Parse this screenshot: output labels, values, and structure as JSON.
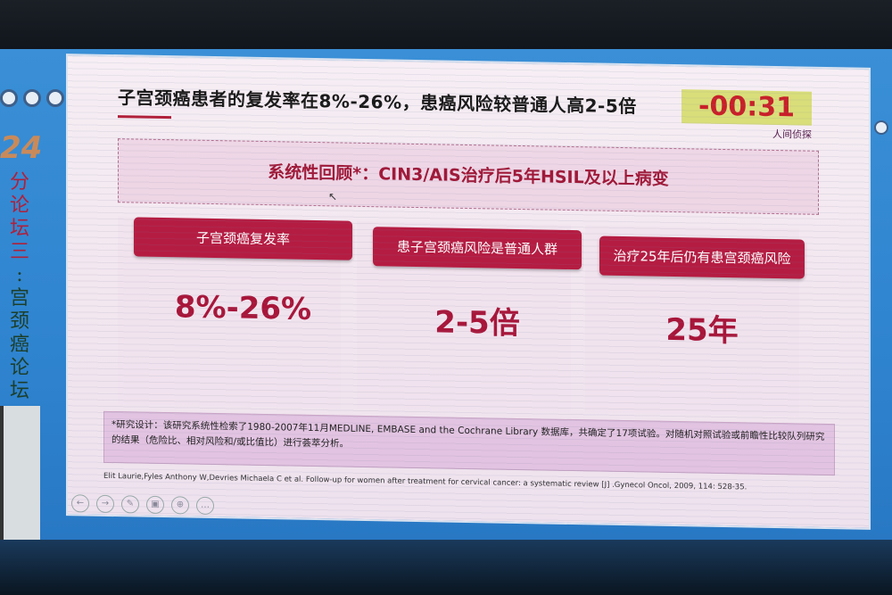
{
  "side_banner": {
    "year": "24",
    "vertical_text": [
      "分",
      "论",
      "坛",
      "三",
      ":",
      "宫",
      "颈",
      "癌",
      "论",
      "坛"
    ]
  },
  "slide": {
    "title": "子宫颈癌患者的复发率在8%-26%，患癌风险较普通人高2-5倍",
    "timer": "-00:31",
    "brand": "人间侦探",
    "banner": "系统性回顾*：CIN3/AIS治疗后5年HSIL及以上病变",
    "cards": [
      {
        "label": "子宫颈癌复发率",
        "value": "8%-26%"
      },
      {
        "label": "患子宫颈癌风险是普通人群",
        "value": "2-5倍"
      },
      {
        "label": "治疗25年后仍有患宫颈癌风险",
        "value": "25年"
      }
    ],
    "note": "*研究设计：该研究系统性检索了1980-2007年11月MEDLINE, EMBASE and the Cochrane Library 数据库，共确定了17项试验。对随机对照试验或前瞻性比较队列研究的结果（危险比、相对风险和/或比值比）进行荟萃分析。",
    "citation": "Elit Laurie,Fyles Anthony W,Devries Michaela C et al. Follow-up for women after treatment for cervical cancer: a systematic review [J] .Gynecol Oncol, 2009, 114: 528-35.",
    "toolbar_icons": [
      "back-icon",
      "forward-icon",
      "pen-icon",
      "pointer-icon",
      "zoom-icon",
      "more-icon"
    ]
  },
  "colors": {
    "accent": "#b51c42",
    "timer_bg": "#d9de7a",
    "timer_text": "#c8202a",
    "screen_blue": "#2f84d0"
  }
}
